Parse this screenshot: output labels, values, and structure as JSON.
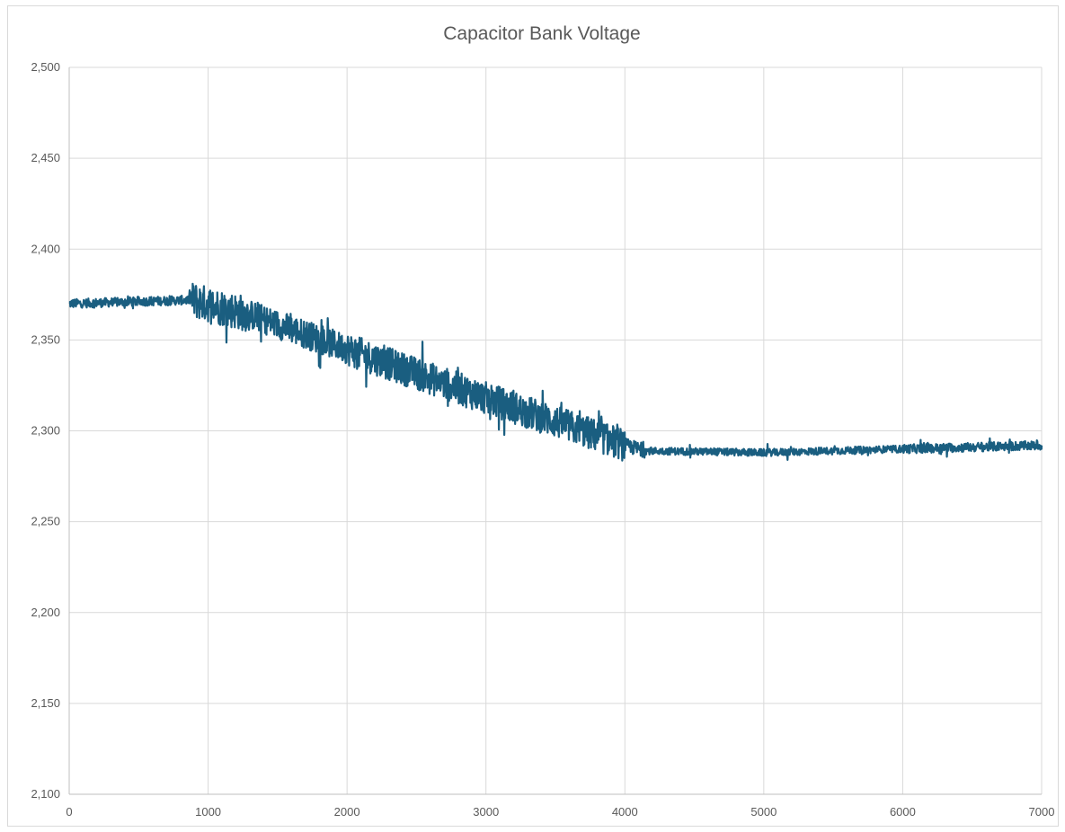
{
  "chart_data": {
    "type": "line",
    "title": "Capacitor Bank Voltage",
    "xlabel": "",
    "ylabel": "",
    "xlim": [
      0,
      7000
    ],
    "ylim": [
      2100,
      2500
    ],
    "x_ticks": [
      0,
      1000,
      2000,
      3000,
      4000,
      5000,
      6000,
      7000
    ],
    "x_tick_labels": [
      "0",
      "1000",
      "2000",
      "3000",
      "4000",
      "5000",
      "6000",
      "7000"
    ],
    "y_ticks": [
      2100,
      2150,
      2200,
      2250,
      2300,
      2350,
      2400,
      2450,
      2500
    ],
    "y_tick_labels": [
      "2,100",
      "2,150",
      "2,200",
      "2,250",
      "2,300",
      "2,350",
      "2,400",
      "2,450",
      "2,500"
    ],
    "grid": true,
    "legend": "none",
    "series_color": "#1a5e80",
    "series": [
      {
        "segments": [
          {
            "x_start": 0,
            "x_end": 880,
            "y_start": 2370,
            "y_end": 2372,
            "amplitude": 2.5
          },
          {
            "x_start": 880,
            "x_end": 1300,
            "y_start": 2372,
            "y_end": 2364,
            "amplitude": 10
          },
          {
            "x_start": 1300,
            "x_end": 2000,
            "y_start": 2364,
            "y_end": 2345,
            "amplitude": 8
          },
          {
            "x_start": 2000,
            "x_end": 3000,
            "y_start": 2345,
            "y_end": 2318,
            "amplitude": 9
          },
          {
            "x_start": 3000,
            "x_end": 4000,
            "y_start": 2318,
            "y_end": 2292,
            "amplitude": 9
          },
          {
            "x_start": 4000,
            "x_end": 4150,
            "y_start": 2292,
            "y_end": 2289,
            "amplitude": 4
          },
          {
            "x_start": 4150,
            "x_end": 5000,
            "y_start": 2289,
            "y_end": 2288,
            "amplitude": 2
          },
          {
            "x_start": 5000,
            "x_end": 6000,
            "y_start": 2288,
            "y_end": 2290,
            "amplitude": 2
          },
          {
            "x_start": 6000,
            "x_end": 7000,
            "y_start": 2290,
            "y_end": 2292,
            "amplitude": 2.5
          }
        ]
      }
    ]
  }
}
